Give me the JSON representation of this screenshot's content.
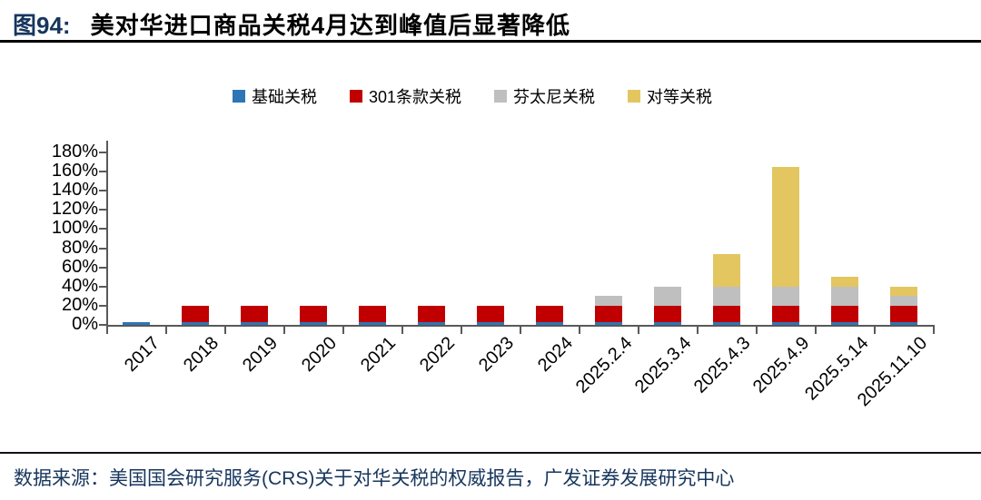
{
  "header": {
    "figure_label": "图94:",
    "title": "美对华进口商品关税4月达到峰值后显著降低"
  },
  "footer": {
    "source_label": "数据来源：",
    "source_text": "美国国会研究服务(CRS)关于对华关税的权威报告，广发证券发展研究中心"
  },
  "chart_data": {
    "type": "bar",
    "stacked": true,
    "title": "美对华进口商品关税4月达到峰值后显著降低",
    "xlabel": "",
    "ylabel": "",
    "ylim": [
      0,
      180
    ],
    "y_tick_step": 20,
    "y_tick_labels": [
      "0%",
      "20%",
      "40%",
      "60%",
      "80%",
      "100%",
      "120%",
      "140%",
      "160%",
      "180%"
    ],
    "grid": false,
    "legend_position": "top",
    "categories": [
      "2017",
      "2018",
      "2019",
      "2020",
      "2021",
      "2022",
      "2023",
      "2024",
      "2025.2.4",
      "2025.3.4",
      "2025.4.3",
      "2025.4.9",
      "2025.5.14",
      "2025.11.10"
    ],
    "series": [
      {
        "name": "基础关税",
        "color": "#2E75B6",
        "values": [
          3,
          3,
          3,
          3,
          3,
          3,
          3,
          3,
          3,
          3,
          3,
          3,
          3,
          3
        ]
      },
      {
        "name": "301条款关税",
        "color": "#C00000",
        "values": [
          0,
          17,
          17,
          17,
          17,
          17,
          17,
          17,
          17,
          17,
          17,
          17,
          17,
          17
        ]
      },
      {
        "name": "芬太尼关税",
        "color": "#BFBFBF",
        "values": [
          0,
          0,
          0,
          0,
          0,
          0,
          0,
          0,
          10,
          20,
          20,
          20,
          20,
          10
        ]
      },
      {
        "name": "对等关税",
        "color": "#E3C660",
        "values": [
          0,
          0,
          0,
          0,
          0,
          0,
          0,
          0,
          0,
          0,
          34,
          125,
          10,
          10
        ]
      }
    ],
    "totals": [
      3,
      20,
      20,
      20,
      20,
      20,
      20,
      20,
      30,
      40,
      74,
      165,
      50,
      40
    ]
  },
  "colors": {
    "figure_number": "#17365D",
    "axis": "#595959",
    "header_rule": "#000000",
    "footer_text": "#17365D"
  }
}
